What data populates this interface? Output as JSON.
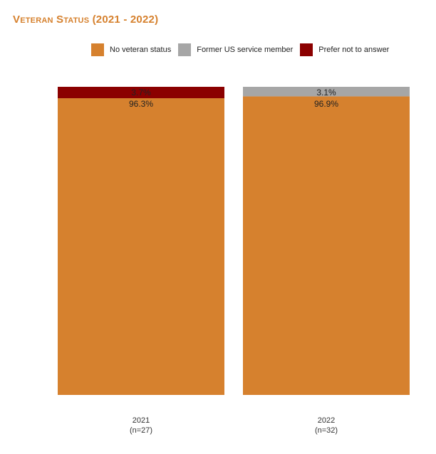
{
  "chart_data": {
    "type": "bar",
    "stacked": true,
    "normalized_percent": true,
    "title": "Veteran Status (2021 - 2022)",
    "xlabel": "",
    "ylabel": "",
    "ylim": [
      0,
      100
    ],
    "grid": false,
    "legend_position": "top",
    "categories": [
      "2021",
      "2022"
    ],
    "category_sublabels": [
      "(n=27)",
      "(n=32)"
    ],
    "series": [
      {
        "name": "No veteran status",
        "color": "#D6812E",
        "values": [
          96.3,
          96.9
        ],
        "labels": [
          "96.3%",
          "96.9%"
        ]
      },
      {
        "name": "Former US service member",
        "color": "#A6A6A6",
        "values": [
          0,
          3.1
        ],
        "labels": [
          "",
          "3.1%"
        ]
      },
      {
        "name": "Prefer not to answer",
        "color": "#8B0000",
        "values": [
          3.7,
          0
        ],
        "labels": [
          "3.7%",
          ""
        ]
      }
    ]
  }
}
